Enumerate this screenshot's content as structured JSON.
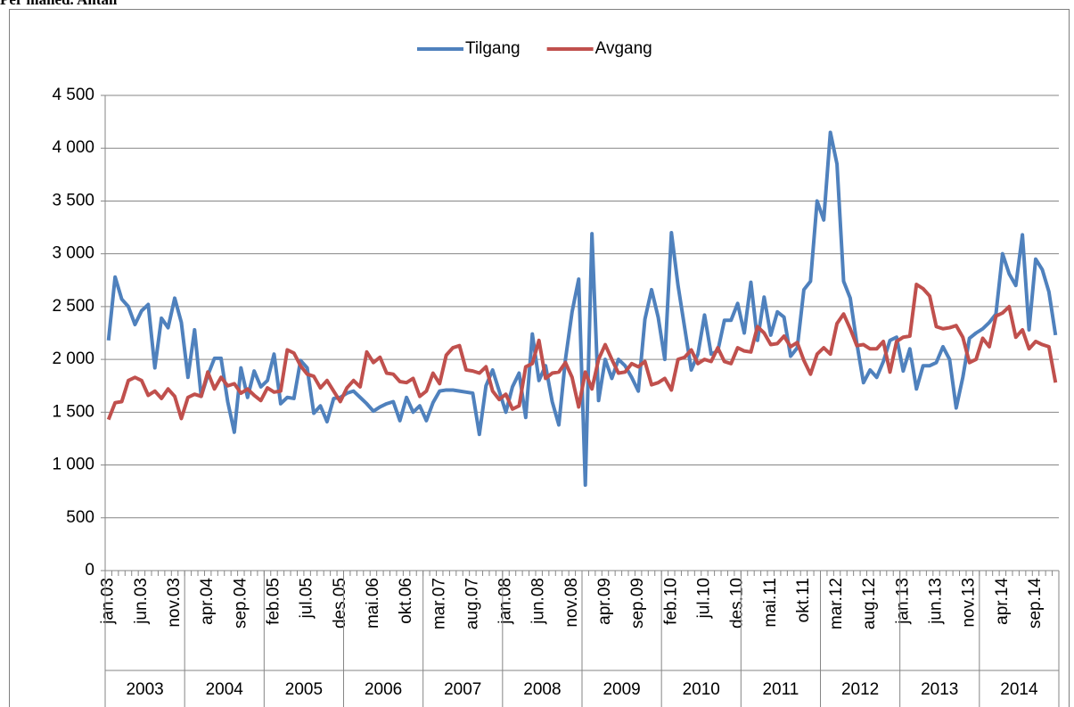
{
  "chart_data": {
    "type": "line",
    "title": "Per måned. Antall",
    "categories": [
      "jan.03",
      null,
      null,
      null,
      null,
      "jun.03",
      null,
      null,
      null,
      null,
      "nov.03",
      null,
      null,
      null,
      null,
      "apr.04",
      null,
      null,
      null,
      null,
      "sep.04",
      null,
      null,
      null,
      null,
      "feb.05",
      null,
      null,
      null,
      null,
      "jul.05",
      null,
      null,
      null,
      null,
      "des.05",
      null,
      null,
      null,
      null,
      "mai.06",
      null,
      null,
      null,
      null,
      "okt.06",
      null,
      null,
      null,
      null,
      "mar.07",
      null,
      null,
      null,
      null,
      "aug.07",
      null,
      null,
      null,
      null,
      "jan.08",
      null,
      null,
      null,
      null,
      "jun.08",
      null,
      null,
      null,
      null,
      "nov.08",
      null,
      null,
      null,
      null,
      "apr.09",
      null,
      null,
      null,
      null,
      "sep.09",
      null,
      null,
      null,
      null,
      "feb.10",
      null,
      null,
      null,
      null,
      "jul.10",
      null,
      null,
      null,
      null,
      "des.10",
      null,
      null,
      null,
      null,
      "mai.11",
      null,
      null,
      null,
      null,
      "okt.11",
      null,
      null,
      null,
      null,
      "mar.12",
      null,
      null,
      null,
      null,
      "aug.12",
      null,
      null,
      null,
      null,
      "jan.13",
      null,
      null,
      null,
      null,
      "jun.13",
      null,
      null,
      null,
      null,
      "nov.13",
      null,
      null,
      null,
      null,
      "apr.14",
      null,
      null,
      null,
      null,
      "sep.14",
      null,
      null,
      null
    ],
    "year_groups": [
      "2003",
      "2004",
      "2005",
      "2006",
      "2007",
      "2008",
      "2009",
      "2010",
      "2011",
      "2012",
      "2013",
      "2014"
    ],
    "series": [
      {
        "name": "Tilgang",
        "color": "#4f81bd",
        "values": [
          2180,
          2780,
          2570,
          2500,
          2330,
          2460,
          2520,
          1920,
          2390,
          2300,
          2580,
          2350,
          1830,
          2280,
          1650,
          1850,
          2010,
          2010,
          1600,
          1310,
          1920,
          1640,
          1890,
          1740,
          1800,
          2050,
          1580,
          1640,
          1630,
          1990,
          1920,
          1490,
          1560,
          1410,
          1630,
          1640,
          1680,
          1700,
          1640,
          1580,
          1510,
          1550,
          1580,
          1600,
          1420,
          1640,
          1500,
          1560,
          1420,
          1590,
          1700,
          1710,
          1710,
          1700,
          1690,
          1680,
          1290,
          1750,
          1900,
          1700,
          1500,
          1740,
          1870,
          1450,
          2240,
          1800,
          1940,
          1600,
          1380,
          2000,
          2450,
          2760,
          810,
          3190,
          1610,
          2000,
          1820,
          2000,
          1940,
          1830,
          1700,
          2380,
          2660,
          2400,
          2000,
          3200,
          2700,
          2300,
          1900,
          2050,
          2420,
          2050,
          2080,
          2370,
          2370,
          2530,
          2250,
          2730,
          2180,
          2590,
          2230,
          2450,
          2400,
          2030,
          2110,
          2660,
          2740,
          3500,
          3320,
          4150,
          3850,
          2740,
          2580,
          2150,
          1780,
          1900,
          1830,
          1980,
          2180,
          2210,
          1890,
          2100,
          1720,
          1940,
          1940,
          1970,
          2120,
          2000,
          1540,
          1830,
          2200,
          2250,
          2290,
          2350,
          2430,
          3000,
          2810,
          2700,
          3180,
          2280,
          2950,
          2850,
          2640,
          2230
        ]
      },
      {
        "name": "Avgang",
        "color": "#c0504d",
        "values": [
          1430,
          1590,
          1600,
          1800,
          1830,
          1800,
          1660,
          1700,
          1630,
          1720,
          1650,
          1440,
          1640,
          1670,
          1650,
          1880,
          1720,
          1830,
          1750,
          1770,
          1680,
          1720,
          1660,
          1610,
          1730,
          1690,
          1700,
          2090,
          2060,
          1940,
          1860,
          1840,
          1730,
          1800,
          1700,
          1600,
          1730,
          1800,
          1740,
          2070,
          1970,
          2020,
          1870,
          1860,
          1790,
          1780,
          1820,
          1650,
          1700,
          1870,
          1770,
          2040,
          2110,
          2130,
          1900,
          1890,
          1870,
          1930,
          1700,
          1620,
          1670,
          1530,
          1560,
          1930,
          1960,
          2180,
          1820,
          1870,
          1880,
          1970,
          1830,
          1550,
          1880,
          1720,
          2000,
          2140,
          2000,
          1870,
          1880,
          1960,
          1930,
          1980,
          1760,
          1780,
          1820,
          1710,
          2000,
          2020,
          2090,
          1960,
          2000,
          1980,
          2110,
          1980,
          1960,
          2110,
          2080,
          2070,
          2310,
          2250,
          2140,
          2150,
          2220,
          2120,
          2160,
          1990,
          1860,
          2050,
          2110,
          2050,
          2340,
          2430,
          2290,
          2130,
          2140,
          2100,
          2100,
          2170,
          1880,
          2170,
          2210,
          2220,
          2710,
          2670,
          2600,
          2310,
          2290,
          2300,
          2320,
          2210,
          1970,
          2000,
          2200,
          2120,
          2410,
          2440,
          2500,
          2210,
          2280,
          2100,
          2170,
          2140,
          2120,
          1780
        ]
      }
    ],
    "ylim": [
      0,
      4500
    ],
    "yticks": [
      0,
      500,
      {
        "value": 1000,
        "label": "1 000"
      },
      {
        "value": 1500,
        "label": "1 500"
      },
      {
        "value": 2000,
        "label": "2 000"
      },
      {
        "value": 2500,
        "label": "2 500"
      },
      {
        "value": 3000,
        "label": "3 000"
      },
      {
        "value": 3500,
        "label": "3 500"
      },
      {
        "value": 4000,
        "label": "4 000"
      },
      {
        "value": 4500,
        "label": "4 500"
      }
    ],
    "grid": true,
    "legend": "top"
  }
}
